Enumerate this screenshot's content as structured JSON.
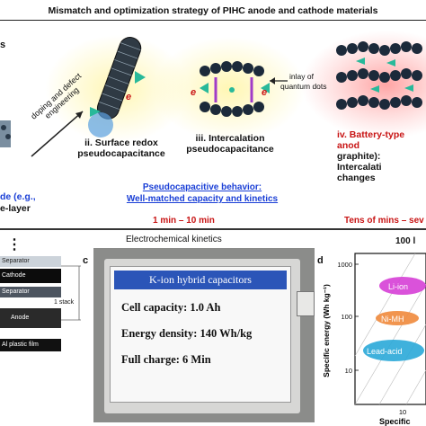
{
  "figure": {
    "title": "Mismatch and optimization strategy of PIHC anode and cathode materials",
    "left_cut_letter": "s",
    "doping_label": "doping and defect engineering",
    "mechanisms": {
      "ii": "ii. Surface redox pseudocapacitance",
      "iii": "iii. Intercalation pseudocapacitance",
      "iv_line1": "iv. Battery-type anod",
      "iv_line2": "graphite): Intercalati",
      "iv_line3": "changes",
      "inlay": "inlay of quantum dots",
      "left_fragment_1": "de (e.g.,",
      "left_fragment_2": "e-layer"
    },
    "pseudo_line1": "Pseudocapacitive behavior:",
    "pseudo_line2": "Well-matched capacity and kinetics",
    "time_1": "1 min – 10 min",
    "time_2": "Tens of mins – sev",
    "kinetics": "Electrochemical  kinetics",
    "electron": "e",
    "hundred_label": "100 l"
  },
  "panel_b": {
    "dots": "⋮",
    "separator_top": "Separator",
    "cathode": "Cathode",
    "separator_mid": "Separator",
    "anode": "Anode",
    "film": "Al plastic film",
    "stack": "1 stack"
  },
  "panel_c": {
    "letter": "c",
    "card_title": "K-ion hybrid capacitors",
    "line1": "Cell capacity: 1.0 Ah",
    "line2": "Energy density: 140 Wh/kg",
    "line3": "Full charge: 6 Min"
  },
  "panel_d": {
    "letter": "d",
    "ylabel": "Specific energy (Wh kg⁻¹)",
    "xlabel": "Specific",
    "y_ticks": [
      "1000",
      "100",
      "10"
    ],
    "x_ticks": [
      "10"
    ],
    "regions": [
      "Li-ion",
      "Ni-MH",
      "Lead-acid"
    ],
    "colors": {
      "li_ion": "#d63fd6",
      "ni_mh": "#f08a3c",
      "lead_acid": "#2aa8d8"
    }
  }
}
